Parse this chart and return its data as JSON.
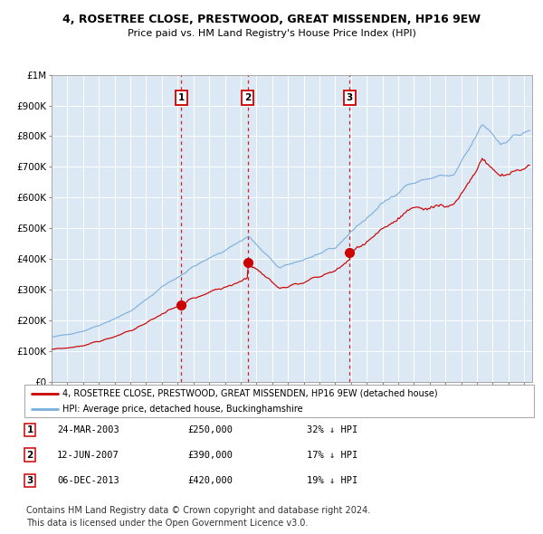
{
  "title": "4, ROSETREE CLOSE, PRESTWOOD, GREAT MISSENDEN, HP16 9EW",
  "subtitle": "Price paid vs. HM Land Registry's House Price Index (HPI)",
  "legend_label_red": "4, ROSETREE CLOSE, PRESTWOOD, GREAT MISSENDEN, HP16 9EW (detached house)",
  "legend_label_blue": "HPI: Average price, detached house, Buckinghamshire",
  "sales": [
    {
      "label": "1",
      "date": "24-MAR-2003",
      "price": 250000,
      "note": "32% ↓ HPI"
    },
    {
      "label": "2",
      "date": "12-JUN-2007",
      "price": 390000,
      "note": "17% ↓ HPI"
    },
    {
      "label": "3",
      "date": "06-DEC-2013",
      "price": 420000,
      "note": "19% ↓ HPI"
    }
  ],
  "sale_dates_decimal": [
    2003.22,
    2007.44,
    2013.92
  ],
  "ylabel_ticks": [
    "£0",
    "£100K",
    "£200K",
    "£300K",
    "£400K",
    "£500K",
    "£600K",
    "£700K",
    "£800K",
    "£900K",
    "£1M"
  ],
  "ylabel_values": [
    0,
    100000,
    200000,
    300000,
    400000,
    500000,
    600000,
    700000,
    800000,
    900000,
    1000000
  ],
  "ylim": [
    0,
    1000000
  ],
  "xlim_start": 1995.0,
  "xlim_end": 2025.5,
  "background_color": "#dce9f5",
  "grid_color": "#ffffff",
  "red_line_color": "#cc0000",
  "blue_line_color": "#7aaedb",
  "vline_color": "#cc0000",
  "footer_text": "Contains HM Land Registry data © Crown copyright and database right 2024.\nThis data is licensed under the Open Government Licence v3.0.",
  "copyright_fontsize": 7.0
}
